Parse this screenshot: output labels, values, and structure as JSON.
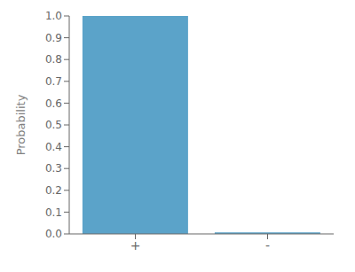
{
  "chart_data": {
    "type": "bar",
    "categories": [
      "+",
      "-"
    ],
    "values": [
      1.0,
      0.007
    ],
    "color": "#5ba3c9",
    "ylabel": "Probability",
    "ylim": [
      0,
      1.0
    ],
    "yticks": [
      {
        "value": 0,
        "label": "0.0"
      },
      0.1,
      0.2,
      0.3,
      0.4,
      0.5,
      0.6,
      0.7,
      0.8,
      0.9,
      {
        "value": 1.0,
        "label": "1.0"
      }
    ],
    "grid": false
  }
}
